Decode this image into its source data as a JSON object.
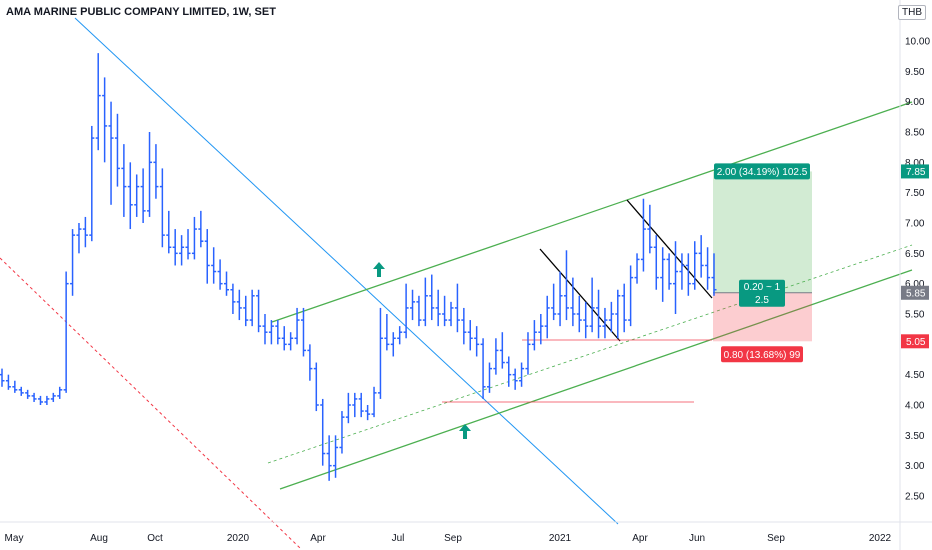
{
  "header": {
    "title": "AMA MARINE PUBLIC COMPANY LIMITED, 1W, SET",
    "currency": "THB"
  },
  "chart_data": {
    "type": "candlestick-ohlc-bars",
    "timeframe": "1W",
    "symbol_exchange": "SET",
    "x_ticks": [
      "May",
      "Aug",
      "Oct",
      "2020",
      "Apr",
      "Jul",
      "Sep",
      "2021",
      "Apr",
      "Jun",
      "Sep",
      "2022"
    ],
    "y_ticks": [
      "2.50",
      "3.00",
      "3.50",
      "4.00",
      "4.50",
      "5.00",
      "5.50",
      "6.00",
      "6.50",
      "7.00",
      "7.50",
      "8.00",
      "8.50",
      "9.00",
      "9.50",
      "10.00"
    ],
    "ylim": [
      2.2,
      10.4
    ],
    "price_tags": [
      {
        "label": "7.85",
        "value": 7.85,
        "color": "#089981"
      },
      {
        "label": "5.85",
        "value": 5.85,
        "color": "#787b86"
      },
      {
        "label": "5.05",
        "value": 5.05,
        "color": "#f23645"
      }
    ],
    "position": {
      "entry": 5.85,
      "target": 7.85,
      "stop": 5.05,
      "profit_label": "2.00 (34.19%) 102.5",
      "loss_label": "0.80 (13.68%) 99",
      "ratio_line1": "0.20 ~ 1",
      "ratio_line2": "2.5"
    },
    "series": [
      {
        "values": [
          [
            4.5,
            4.6,
            4.3,
            4.4
          ],
          [
            4.4,
            4.5,
            4.25,
            4.3
          ],
          [
            4.3,
            4.4,
            4.2,
            4.25
          ],
          [
            4.25,
            4.3,
            4.15,
            4.2
          ],
          [
            4.2,
            4.25,
            4.1,
            4.15
          ],
          [
            4.15,
            4.2,
            4.05,
            4.1
          ],
          [
            4.1,
            4.15,
            4.0,
            4.05
          ],
          [
            4.05,
            4.15,
            4.0,
            4.1
          ],
          [
            4.1,
            4.2,
            4.05,
            4.15
          ],
          [
            4.15,
            4.3,
            4.1,
            4.25
          ],
          [
            4.25,
            6.2,
            4.2,
            6.0
          ],
          [
            6.0,
            6.9,
            5.8,
            6.8
          ],
          [
            6.8,
            7.0,
            6.5,
            6.9
          ],
          [
            6.9,
            7.1,
            6.6,
            6.8
          ],
          [
            6.8,
            8.6,
            6.7,
            8.4
          ],
          [
            8.4,
            9.8,
            8.2,
            9.1
          ],
          [
            9.1,
            9.4,
            8.0,
            8.6
          ],
          [
            8.6,
            9.0,
            7.3,
            8.4
          ],
          [
            8.4,
            8.8,
            7.6,
            7.9
          ],
          [
            7.9,
            8.3,
            7.1,
            7.6
          ],
          [
            7.6,
            8.0,
            6.9,
            7.3
          ],
          [
            7.3,
            7.8,
            7.1,
            7.6
          ],
          [
            7.6,
            7.9,
            7.0,
            7.2
          ],
          [
            7.2,
            8.5,
            7.1,
            8.0
          ],
          [
            8.0,
            8.3,
            7.4,
            7.6
          ],
          [
            7.6,
            7.9,
            6.6,
            6.8
          ],
          [
            6.8,
            7.2,
            6.5,
            6.6
          ],
          [
            6.6,
            6.9,
            6.3,
            6.5
          ],
          [
            6.5,
            6.8,
            6.3,
            6.6
          ],
          [
            6.6,
            6.9,
            6.4,
            6.5
          ],
          [
            6.5,
            7.1,
            6.4,
            6.9
          ],
          [
            6.9,
            7.2,
            6.6,
            6.7
          ],
          [
            6.7,
            6.9,
            6.0,
            6.3
          ],
          [
            6.3,
            6.6,
            6.0,
            6.2
          ],
          [
            6.2,
            6.4,
            5.9,
            6.0
          ],
          [
            6.0,
            6.2,
            5.8,
            5.9
          ],
          [
            5.9,
            6.0,
            5.5,
            5.7
          ],
          [
            5.7,
            5.9,
            5.4,
            5.6
          ],
          [
            5.6,
            5.8,
            5.3,
            5.4
          ],
          [
            5.4,
            5.9,
            5.3,
            5.8
          ],
          [
            5.8,
            5.9,
            5.2,
            5.3
          ],
          [
            5.3,
            5.5,
            5.0,
            5.2
          ],
          [
            5.2,
            5.4,
            5.0,
            5.3
          ],
          [
            5.3,
            5.4,
            5.0,
            5.1
          ],
          [
            5.1,
            5.3,
            4.9,
            5.0
          ],
          [
            5.0,
            5.2,
            4.9,
            5.1
          ],
          [
            5.1,
            5.6,
            5.0,
            5.4
          ],
          [
            5.4,
            5.6,
            4.8,
            4.9
          ],
          [
            4.9,
            5.0,
            4.4,
            4.6
          ],
          [
            4.6,
            4.7,
            3.9,
            4.0
          ],
          [
            4.0,
            4.1,
            3.0,
            3.2
          ],
          [
            3.2,
            3.5,
            2.75,
            3.0
          ],
          [
            3.0,
            3.5,
            2.8,
            3.3
          ],
          [
            3.3,
            3.9,
            3.2,
            3.8
          ],
          [
            3.8,
            4.2,
            3.7,
            4.0
          ],
          [
            4.0,
            4.2,
            3.8,
            4.1
          ],
          [
            4.1,
            4.2,
            3.8,
            3.9
          ],
          [
            3.9,
            4.0,
            3.75,
            3.85
          ],
          [
            3.85,
            4.3,
            3.8,
            4.2
          ],
          [
            4.2,
            5.6,
            4.1,
            5.1
          ],
          [
            5.1,
            5.5,
            4.9,
            5.0
          ],
          [
            5.0,
            5.2,
            4.8,
            5.1
          ],
          [
            5.1,
            5.3,
            5.0,
            5.2
          ],
          [
            5.2,
            6.0,
            5.1,
            5.6
          ],
          [
            5.6,
            5.9,
            5.4,
            5.7
          ],
          [
            5.7,
            5.8,
            5.3,
            5.4
          ],
          [
            5.4,
            6.1,
            5.3,
            5.8
          ],
          [
            5.8,
            6.15,
            5.4,
            5.6
          ],
          [
            5.6,
            5.9,
            5.3,
            5.5
          ],
          [
            5.5,
            5.8,
            5.3,
            5.4
          ],
          [
            5.4,
            5.7,
            5.3,
            5.6
          ],
          [
            5.6,
            6.0,
            5.2,
            5.4
          ],
          [
            5.4,
            5.6,
            5.0,
            5.2
          ],
          [
            5.2,
            5.4,
            4.9,
            5.1
          ],
          [
            5.1,
            5.3,
            4.8,
            5.0
          ],
          [
            5.0,
            5.1,
            4.1,
            4.3
          ],
          [
            4.3,
            4.7,
            4.2,
            4.6
          ],
          [
            4.6,
            5.1,
            4.5,
            4.9
          ],
          [
            4.9,
            5.2,
            4.6,
            4.7
          ],
          [
            4.7,
            4.8,
            4.3,
            4.5
          ],
          [
            4.5,
            4.6,
            4.25,
            4.4
          ],
          [
            4.4,
            4.7,
            4.3,
            4.6
          ],
          [
            4.6,
            5.2,
            4.5,
            5.0
          ],
          [
            5.0,
            5.4,
            4.9,
            5.2
          ],
          [
            5.2,
            5.5,
            5.0,
            5.3
          ],
          [
            5.3,
            5.8,
            5.1,
            5.6
          ],
          [
            5.6,
            6.0,
            5.4,
            5.5
          ],
          [
            5.5,
            6.2,
            5.3,
            5.8
          ],
          [
            5.8,
            6.55,
            5.4,
            5.6
          ],
          [
            5.6,
            6.1,
            5.3,
            5.5
          ],
          [
            5.5,
            5.8,
            5.2,
            5.4
          ],
          [
            5.4,
            5.7,
            5.1,
            5.3
          ],
          [
            5.3,
            6.1,
            5.2,
            5.6
          ],
          [
            5.6,
            5.9,
            5.1,
            5.3
          ],
          [
            5.3,
            5.6,
            5.1,
            5.4
          ],
          [
            5.4,
            5.7,
            5.2,
            5.5
          ],
          [
            5.5,
            5.9,
            5.1,
            5.8
          ],
          [
            5.8,
            6.0,
            5.2,
            5.4
          ],
          [
            5.4,
            6.3,
            5.3,
            6.1
          ],
          [
            6.1,
            6.5,
            6.0,
            6.4
          ],
          [
            6.4,
            7.4,
            6.2,
            6.9
          ],
          [
            6.9,
            7.3,
            6.5,
            6.6
          ],
          [
            6.6,
            6.8,
            5.9,
            6.1
          ],
          [
            6.1,
            6.6,
            5.7,
            6.4
          ],
          [
            6.4,
            6.5,
            5.9,
            6.0
          ],
          [
            6.0,
            6.7,
            5.5,
            6.2
          ],
          [
            6.2,
            6.5,
            5.9,
            6.3
          ],
          [
            6.3,
            6.5,
            5.8,
            6.0
          ],
          [
            6.0,
            6.7,
            5.9,
            6.5
          ],
          [
            6.5,
            6.8,
            6.1,
            6.3
          ],
          [
            6.3,
            6.6,
            5.9,
            6.1
          ],
          [
            6.1,
            6.5,
            5.8,
            5.9
          ]
        ]
      }
    ]
  }
}
